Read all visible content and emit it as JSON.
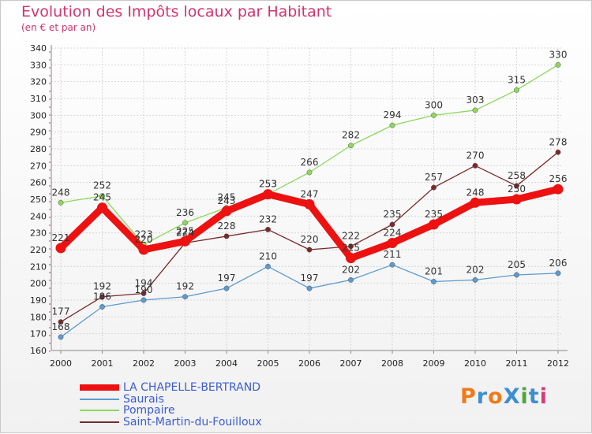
{
  "header": {
    "title": "Evolution des Impôts locaux par Habitant",
    "subtitle": "(en € et par an)"
  },
  "logo": {
    "text": "ProXiti",
    "letters": [
      {
        "ch": "P",
        "color": "#f07a1a"
      },
      {
        "ch": "r",
        "color": "#3c8fd0"
      },
      {
        "ch": "o",
        "color": "#f07a1a"
      },
      {
        "ch": "X",
        "color": "#3c8fd0"
      },
      {
        "ch": "i",
        "color": "#4fa63c"
      },
      {
        "ch": "t",
        "color": "#3c8fd0"
      },
      {
        "ch": "i",
        "color": "#d43c7a"
      }
    ]
  },
  "chart_data": {
    "type": "line",
    "title": "Evolution des Impôts locaux par Habitant",
    "subtitle": "(en € et par an)",
    "categories": [
      "2000",
      "2001",
      "2002",
      "2003",
      "2004",
      "2005",
      "2006",
      "2007",
      "2008",
      "2009",
      "2010",
      "2011",
      "2012"
    ],
    "ylim": [
      160,
      340
    ],
    "yticks": [
      160,
      170,
      180,
      190,
      200,
      210,
      220,
      230,
      240,
      250,
      260,
      270,
      280,
      290,
      300,
      310,
      320,
      330,
      340
    ],
    "grid": true,
    "legend_position": "bottom-left",
    "series": [
      {
        "name": "LA CHAPELLE-BERTRAND",
        "color": "#ee1111",
        "values": [
          221,
          245,
          220,
          225,
          243,
          253,
          247,
          215,
          224,
          235,
          248,
          250,
          256
        ]
      },
      {
        "name": "Saurais",
        "color": "#5b9bd0",
        "values": [
          168,
          186,
          190,
          192,
          197,
          210,
          197,
          202,
          211,
          201,
          202,
          205,
          206
        ]
      },
      {
        "name": "Pompaire",
        "color": "#8ed85c",
        "values": [
          248,
          252,
          223,
          236,
          245,
          253,
          266,
          282,
          294,
          300,
          303,
          315,
          330
        ]
      },
      {
        "name": "Saint-Martin-du-Fouilloux",
        "color": "#7a2a2a",
        "values": [
          177,
          192,
          194,
          224,
          228,
          232,
          220,
          222,
          235,
          257,
          270,
          258,
          278
        ]
      }
    ]
  }
}
